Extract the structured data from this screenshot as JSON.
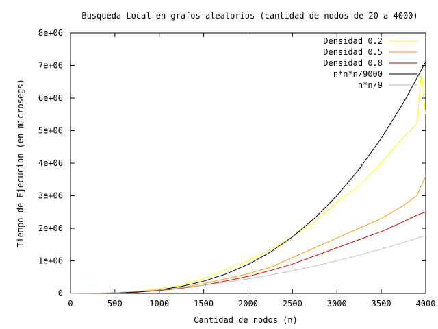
{
  "chart_data": {
    "type": "line",
    "title": "Busqueda Local en grafos aleatorios (cantidad de nodos de 20 a 4000)",
    "xlabel": "Cantidad de nodos (n)",
    "ylabel": "Tiempo de Ejecucion (en microsegs)",
    "xlim": [
      0,
      4000
    ],
    "ylim": [
      0,
      8000000
    ],
    "xticks": [
      0,
      500,
      1000,
      1500,
      2000,
      2500,
      3000,
      3500,
      4000
    ],
    "xtick_labels": [
      "0",
      "500",
      "1000",
      "1500",
      "2000",
      "2500",
      "3000",
      "3500",
      "4000"
    ],
    "yticks": [
      0,
      1000000,
      2000000,
      3000000,
      4000000,
      5000000,
      6000000,
      7000000,
      8000000
    ],
    "ytick_labels": [
      "0",
      "1e+06",
      "2e+06",
      "3e+06",
      "4e+06",
      "5e+06",
      "6e+06",
      "7e+06",
      "8e+06"
    ],
    "grid": false,
    "legend_position": "top-right",
    "series": [
      {
        "name": "Densidad 0.2",
        "color": "#ffff00",
        "x": [
          20,
          250,
          500,
          750,
          1000,
          1250,
          1500,
          1750,
          2000,
          2250,
          2500,
          2750,
          3000,
          3250,
          3500,
          3750,
          3900,
          3950,
          4000
        ],
        "y": [
          500,
          2000,
          16000,
          60000,
          150000,
          260000,
          450000,
          720000,
          1000000,
          1350000,
          1750000,
          2200000,
          2800000,
          3300000,
          4000000,
          4800000,
          5200000,
          6700000,
          5500000
        ]
      },
      {
        "name": "Densidad 0.5",
        "color": "#ff9900",
        "x": [
          20,
          250,
          500,
          750,
          1000,
          1250,
          1500,
          1750,
          2000,
          2250,
          2500,
          2750,
          3000,
          3250,
          3500,
          3750,
          3900,
          4000
        ],
        "y": [
          300,
          1500,
          12000,
          40000,
          100000,
          180000,
          300000,
          450000,
          600000,
          800000,
          1100000,
          1400000,
          1700000,
          2000000,
          2300000,
          2700000,
          3000000,
          3600000
        ]
      },
      {
        "name": "Densidad 0.8",
        "color": "#dd0000",
        "x": [
          20,
          250,
          500,
          750,
          1000,
          1250,
          1500,
          1750,
          2000,
          2250,
          2500,
          2750,
          3000,
          3250,
          3500,
          3750,
          3900,
          4000
        ],
        "y": [
          300,
          1200,
          10000,
          35000,
          90000,
          160000,
          250000,
          380000,
          520000,
          700000,
          900000,
          1150000,
          1400000,
          1650000,
          1900000,
          2200000,
          2400000,
          2500000
        ]
      },
      {
        "name": "n*n*n/9000",
        "color": "#000000",
        "x": [
          0,
          250,
          500,
          750,
          1000,
          1250,
          1500,
          1750,
          2000,
          2250,
          2500,
          2750,
          3000,
          3250,
          3500,
          3750,
          4000
        ],
        "y": [
          0,
          1736,
          13889,
          46875,
          111111,
          217014,
          375000,
          595486,
          888889,
          1265625,
          1736111,
          2310764,
          3000000,
          3814236,
          4763889,
          5859375,
          7111111
        ]
      },
      {
        "name": "n*n/9",
        "color": "#c0c0c0",
        "x": [
          0,
          250,
          500,
          750,
          1000,
          1250,
          1500,
          1750,
          2000,
          2250,
          2500,
          2750,
          3000,
          3250,
          3500,
          3750,
          4000
        ],
        "y": [
          0,
          6944,
          27778,
          62500,
          111111,
          173611,
          250000,
          340278,
          444444,
          562500,
          694444,
          840278,
          1000000,
          1173611,
          1361111,
          1562500,
          1777778
        ]
      }
    ]
  }
}
